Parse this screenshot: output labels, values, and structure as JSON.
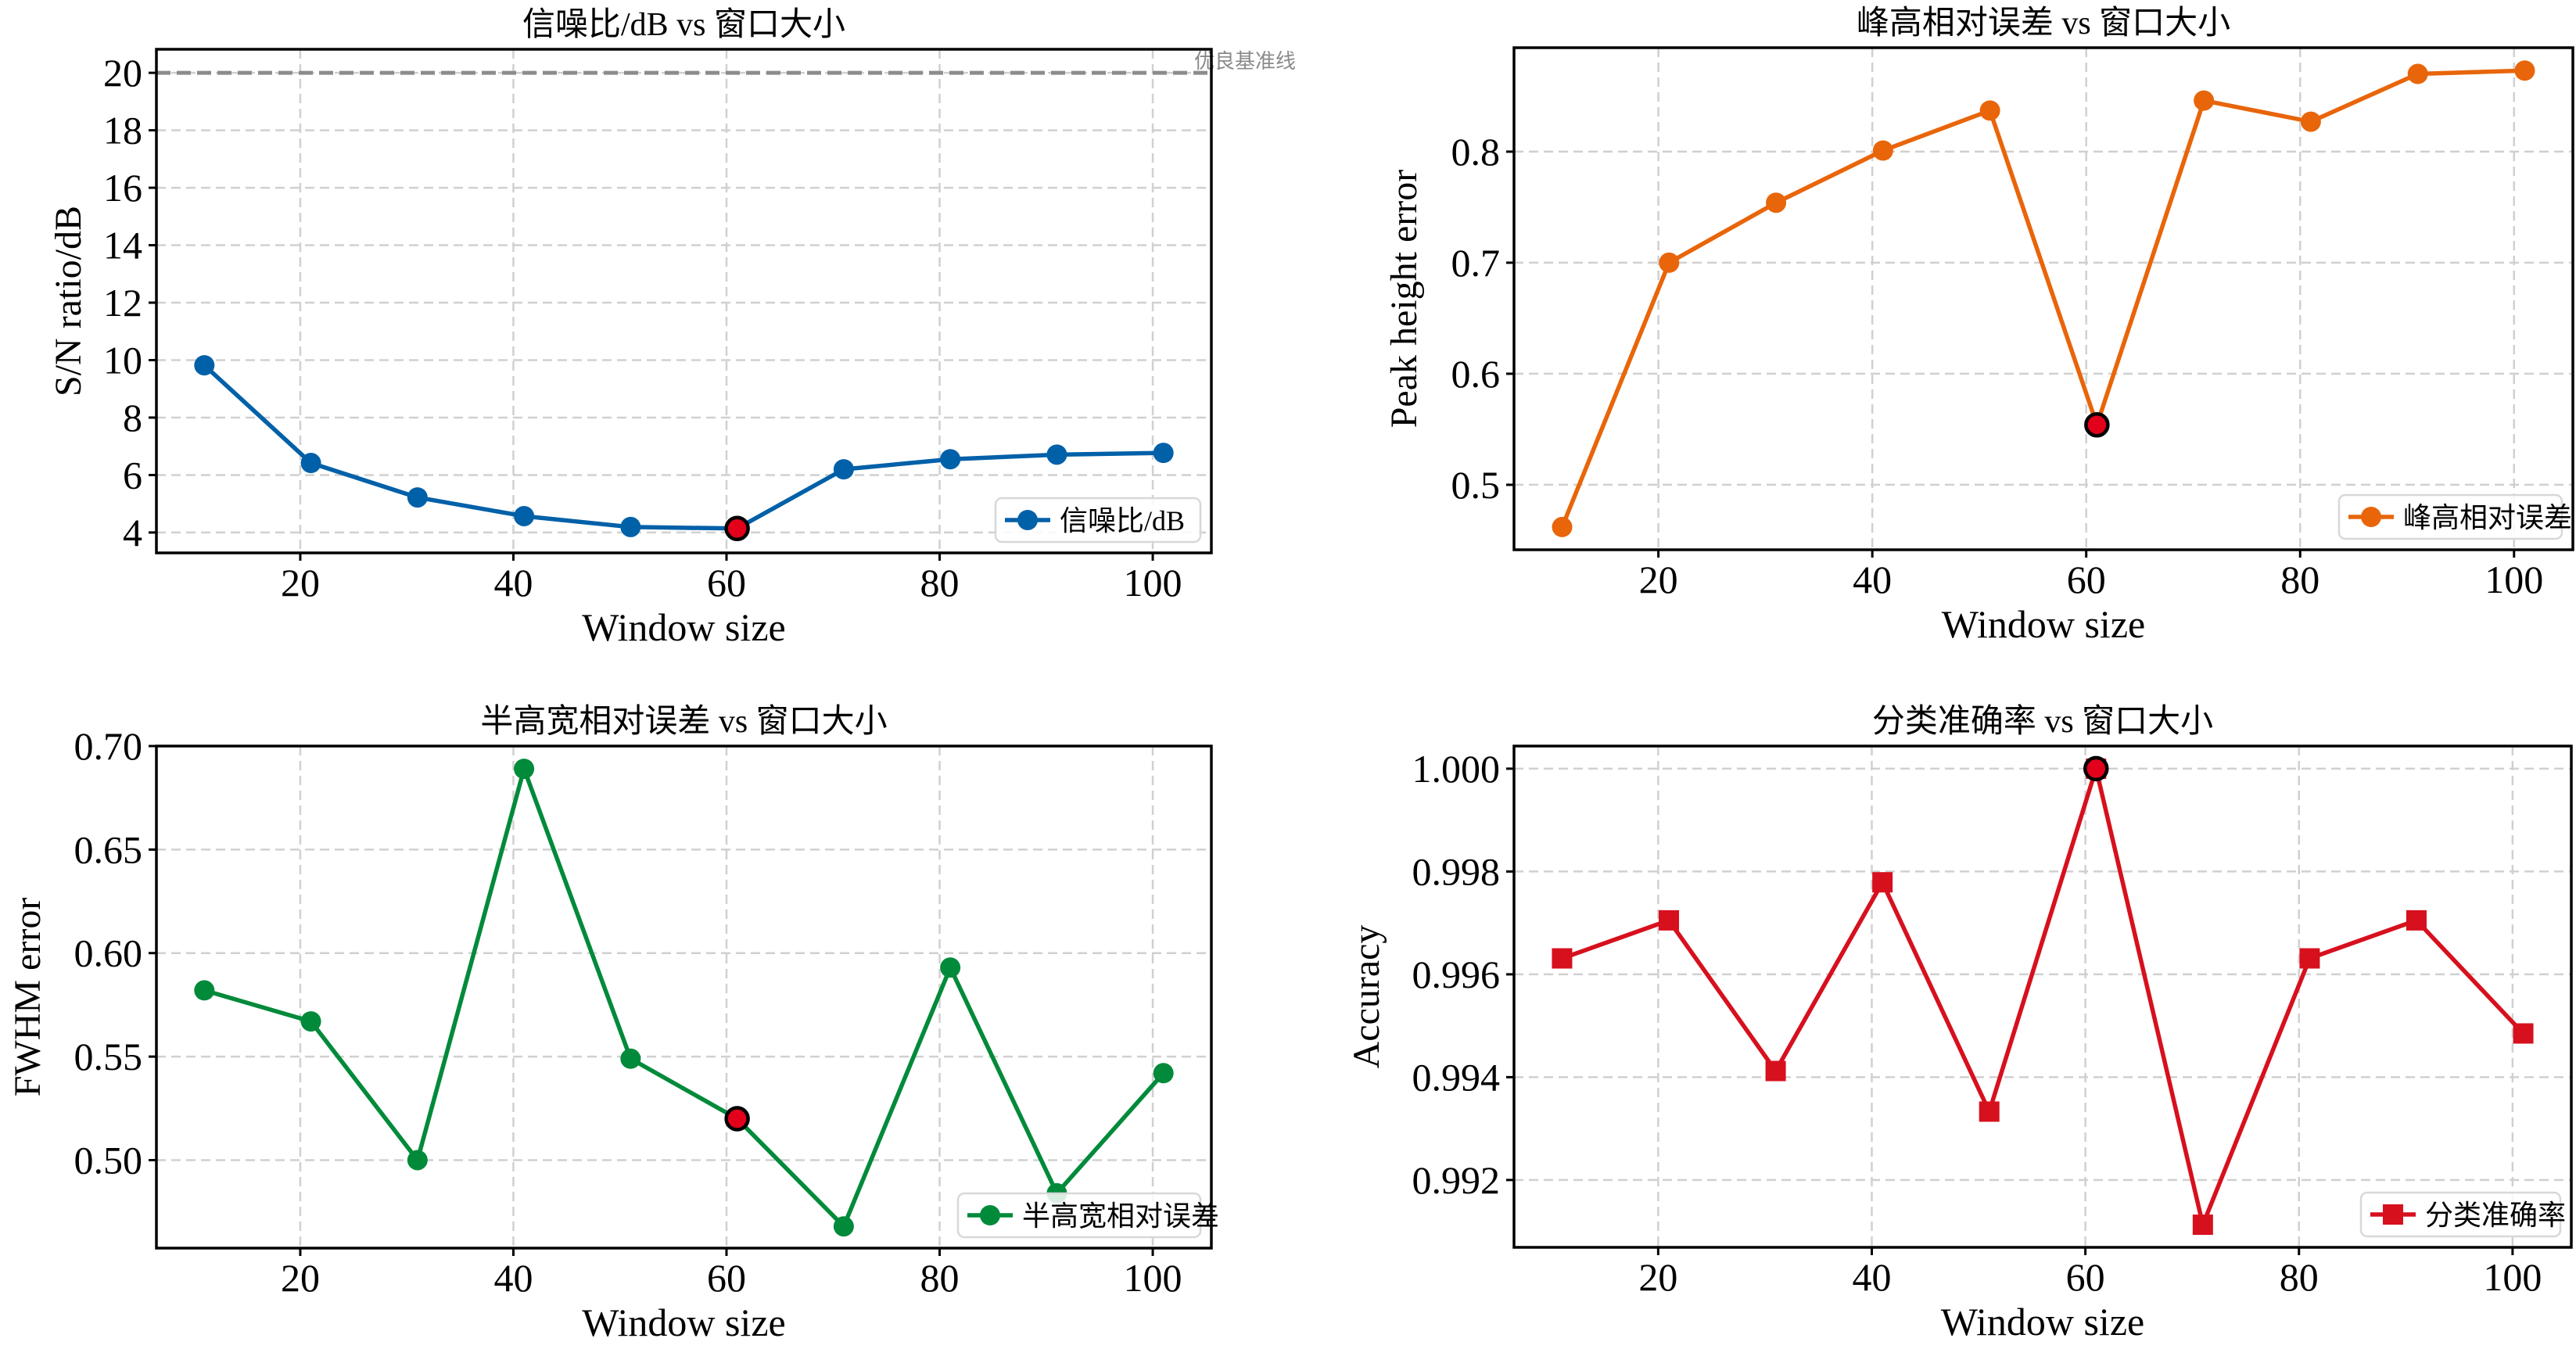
{
  "chart_data": [
    {
      "type": "line",
      "title": "信噪比/dB vs 窗口大小",
      "xlabel": "Window size",
      "ylabel": "S/N ratio/dB",
      "x": [
        11,
        21,
        31,
        41,
        51,
        61,
        71,
        81,
        91,
        101
      ],
      "series": [
        {
          "name": "信噪比/dB",
          "color": "#0060a8",
          "marker": "circle",
          "values": [
            9.82,
            6.42,
            5.22,
            4.57,
            4.19,
            4.14,
            6.2,
            6.55,
            6.71,
            6.77
          ]
        }
      ],
      "highlight": {
        "x": 61,
        "y": 4.14,
        "color": "#e3001b"
      },
      "reference_line": {
        "y": 20,
        "label": "优良基准线",
        "color": "#8c8c8c"
      },
      "xlim": [
        6.5,
        105.5
      ],
      "ylim": [
        3.29,
        20.82
      ],
      "xticks": [
        20,
        40,
        60,
        80,
        100
      ],
      "xtick_labels": [
        "20",
        "40",
        "60",
        "80",
        "100"
      ],
      "yticks": [
        4,
        6,
        8,
        10,
        12,
        14,
        16,
        18,
        20
      ],
      "ytick_labels": [
        "4",
        "6",
        "8",
        "10",
        "12",
        "14",
        "16",
        "18",
        "20"
      ],
      "grid": true,
      "legend": {
        "position": "bottom-right",
        "labels": [
          "信噪比/dB"
        ]
      }
    },
    {
      "type": "line",
      "title": "峰高相对误差 vs 窗口大小",
      "xlabel": "Window size",
      "ylabel": "Peak height error",
      "x": [
        11,
        21,
        31,
        41,
        51,
        61,
        71,
        81,
        91,
        101
      ],
      "series": [
        {
          "name": "峰高相对误差",
          "color": "#e8650a",
          "marker": "circle",
          "values": [
            0.462,
            0.7,
            0.754,
            0.801,
            0.837,
            0.554,
            0.846,
            0.827,
            0.87,
            0.873
          ]
        }
      ],
      "highlight": {
        "x": 61,
        "y": 0.554,
        "color": "#e3001b"
      },
      "xlim": [
        6.5,
        105.5
      ],
      "ylim": [
        0.4415,
        0.8936
      ],
      "xticks": [
        20,
        40,
        60,
        80,
        100
      ],
      "xtick_labels": [
        "20",
        "40",
        "60",
        "80",
        "100"
      ],
      "yticks": [
        0.5,
        0.6,
        0.7,
        0.8
      ],
      "ytick_labels": [
        "0.5",
        "0.6",
        "0.7",
        "0.8"
      ],
      "grid": true,
      "legend": {
        "position": "bottom-right",
        "labels": [
          "峰高相对误差"
        ]
      }
    },
    {
      "type": "line",
      "title": "半高宽相对误差 vs 窗口大小",
      "xlabel": "Window size",
      "ylabel": "FWHM error",
      "x": [
        11,
        21,
        31,
        41,
        51,
        61,
        71,
        81,
        91,
        101
      ],
      "series": [
        {
          "name": "半高宽相对误差",
          "color": "#008a3a",
          "marker": "circle",
          "values": [
            0.582,
            0.567,
            0.5,
            0.689,
            0.549,
            0.52,
            0.468,
            0.593,
            0.484,
            0.542
          ]
        }
      ],
      "highlight": {
        "x": 61,
        "y": 0.52,
        "color": "#e3001b"
      },
      "xlim": [
        6.5,
        105.5
      ],
      "ylim": [
        0.4575,
        0.7
      ],
      "xticks": [
        20,
        40,
        60,
        80,
        100
      ],
      "xtick_labels": [
        "20",
        "40",
        "60",
        "80",
        "100"
      ],
      "yticks": [
        0.5,
        0.55,
        0.6,
        0.65,
        0.7
      ],
      "ytick_labels": [
        "0.50",
        "0.55",
        "0.60",
        "0.65",
        "0.70"
      ],
      "grid": true,
      "legend": {
        "position": "bottom-right",
        "labels": [
          "半高宽相对误差"
        ]
      }
    },
    {
      "type": "line",
      "title": "分类准确率 vs 窗口大小",
      "xlabel": "Window size",
      "ylabel": "Accuracy",
      "x": [
        11,
        21,
        31,
        41,
        51,
        61,
        71,
        81,
        91,
        101
      ],
      "series": [
        {
          "name": "分类准确率",
          "color": "#d7101e",
          "marker": "square",
          "values": [
            0.99631,
            0.99705,
            0.99412,
            0.99779,
            0.99333,
            1.0,
            0.99113,
            0.99631,
            0.99705,
            0.99485
          ]
        }
      ],
      "highlight": {
        "x": 61,
        "y": 1.0,
        "color": "#e3001b"
      },
      "xlim": [
        6.5,
        105.5
      ],
      "ylim": [
        0.99069,
        1.00044
      ],
      "xticks": [
        20,
        40,
        60,
        80,
        100
      ],
      "xtick_labels": [
        "20",
        "40",
        "60",
        "80",
        "100"
      ],
      "yticks": [
        0.992,
        0.994,
        0.996,
        0.998,
        1.0
      ],
      "ytick_labels": [
        "0.992",
        "0.994",
        "0.996",
        "0.998",
        "1.000"
      ],
      "grid": true,
      "legend": {
        "position": "bottom-right",
        "labels": [
          "分类准确率"
        ]
      }
    }
  ]
}
